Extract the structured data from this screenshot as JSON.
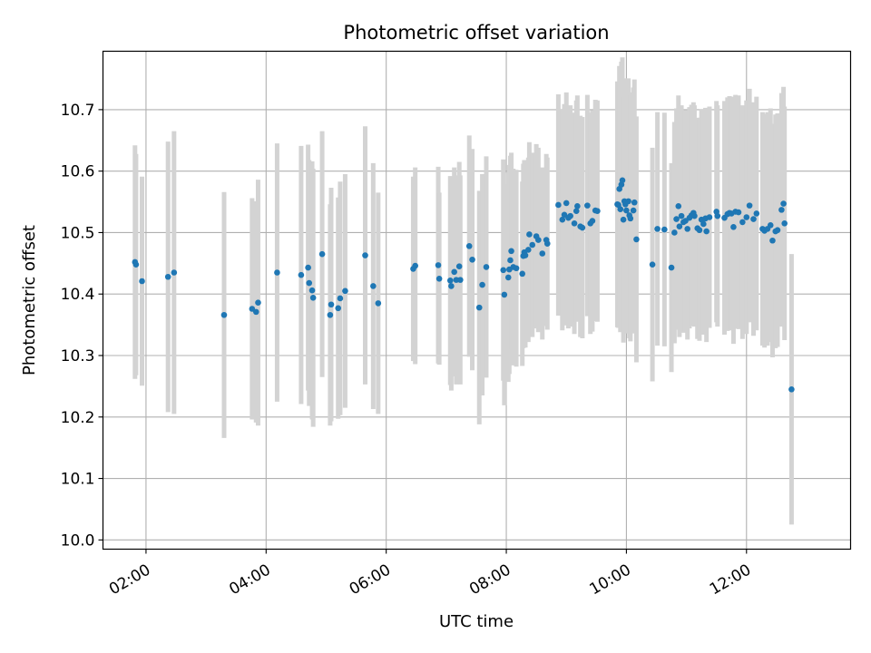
{
  "chart_data": {
    "type": "scatter",
    "title": "Photometric offset variation",
    "xlabel": "UTC time",
    "ylabel": "Photometric offset",
    "x_unit": "UTC time (HH:MM)",
    "xlim": [
      "01:17",
      "13:44"
    ],
    "ylim": [
      9.985,
      10.795
    ],
    "grid": true,
    "x_tick_labels": [
      "02:00",
      "04:00",
      "06:00",
      "08:00",
      "10:00",
      "12:00"
    ],
    "y_tick_labels": [
      "10.0",
      "10.1",
      "10.2",
      "10.3",
      "10.4",
      "10.5",
      "10.6",
      "10.7"
    ],
    "colors": {
      "points": "#1f77b4",
      "error_bars": "#d3d3d3",
      "grid": "#b0b0b0"
    },
    "series": [
      {
        "points": [
          [
            "01:49",
            10.452,
            0.19
          ],
          [
            "01:50",
            10.448,
            0.18
          ],
          [
            "01:56",
            10.421,
            0.17
          ],
          [
            "02:22",
            10.428,
            0.22
          ],
          [
            "02:28",
            10.435,
            0.23
          ],
          [
            "03:18",
            10.366,
            0.2
          ],
          [
            "03:46",
            10.376,
            0.18
          ],
          [
            "03:50",
            10.371,
            0.18
          ],
          [
            "03:52",
            10.386,
            0.2
          ],
          [
            "04:11",
            10.435,
            0.21
          ],
          [
            "04:35",
            10.431,
            0.21
          ],
          [
            "04:42",
            10.443,
            0.2
          ],
          [
            "04:43",
            10.418,
            0.2
          ],
          [
            "04:46",
            10.406,
            0.21
          ],
          [
            "04:47",
            10.394,
            0.21
          ],
          [
            "04:56",
            10.465,
            0.2
          ],
          [
            "05:04",
            10.366,
            0.18
          ],
          [
            "05:05",
            10.383,
            0.19
          ],
          [
            "05:12",
            10.377,
            0.18
          ],
          [
            "05:14",
            10.393,
            0.19
          ],
          [
            "05:19",
            10.405,
            0.19
          ],
          [
            "05:39",
            10.463,
            0.21
          ],
          [
            "05:47",
            10.413,
            0.2
          ],
          [
            "05:52",
            10.385,
            0.18
          ],
          [
            "06:27",
            10.441,
            0.15
          ],
          [
            "06:29",
            10.446,
            0.16
          ],
          [
            "06:52",
            10.447,
            0.16
          ],
          [
            "06:53",
            10.425,
            0.14
          ],
          [
            "07:04",
            10.422,
            0.17
          ],
          [
            "07:05",
            10.413,
            0.17
          ],
          [
            "07:08",
            10.436,
            0.17
          ],
          [
            "07:10",
            10.423,
            0.17
          ],
          [
            "07:13",
            10.445,
            0.17
          ],
          [
            "07:14",
            10.423,
            0.17
          ],
          [
            "07:23",
            10.478,
            0.18
          ],
          [
            "07:26",
            10.456,
            0.18
          ],
          [
            "07:33",
            10.378,
            0.19
          ],
          [
            "07:36",
            10.415,
            0.18
          ],
          [
            "07:40",
            10.444,
            0.18
          ],
          [
            "07:57",
            10.439,
            0.18
          ],
          [
            "07:58",
            10.399,
            0.18
          ],
          [
            "08:02",
            10.427,
            0.17
          ],
          [
            "08:03",
            10.44,
            0.17
          ],
          [
            "08:04",
            10.455,
            0.17
          ],
          [
            "08:05",
            10.47,
            0.16
          ],
          [
            "08:07",
            10.444,
            0.16
          ],
          [
            "08:10",
            10.442,
            0.16
          ],
          [
            "08:16",
            10.433,
            0.15
          ],
          [
            "08:17",
            10.462,
            0.15
          ],
          [
            "08:18",
            10.468,
            0.15
          ],
          [
            "08:19",
            10.463,
            0.15
          ],
          [
            "08:22",
            10.472,
            0.15
          ],
          [
            "08:23",
            10.497,
            0.15
          ],
          [
            "08:26",
            10.48,
            0.15
          ],
          [
            "08:30",
            10.494,
            0.15
          ],
          [
            "08:32",
            10.488,
            0.15
          ],
          [
            "08:36",
            10.466,
            0.14
          ],
          [
            "08:40",
            10.488,
            0.14
          ],
          [
            "08:41",
            10.482,
            0.14
          ],
          [
            "08:52",
            10.545,
            0.18
          ],
          [
            "08:56",
            10.521,
            0.18
          ],
          [
            "08:58",
            10.529,
            0.18
          ],
          [
            "09:00",
            10.548,
            0.18
          ],
          [
            "09:02",
            10.524,
            0.18
          ],
          [
            "09:04",
            10.527,
            0.18
          ],
          [
            "09:08",
            10.515,
            0.18
          ],
          [
            "09:10",
            10.535,
            0.18
          ],
          [
            "09:11",
            10.543,
            0.18
          ],
          [
            "09:14",
            10.51,
            0.18
          ],
          [
            "09:16",
            10.508,
            0.18
          ],
          [
            "09:21",
            10.544,
            0.18
          ],
          [
            "09:24",
            10.515,
            0.18
          ],
          [
            "09:26",
            10.519,
            0.18
          ],
          [
            "09:29",
            10.536,
            0.18
          ],
          [
            "09:31",
            10.535,
            0.18
          ],
          [
            "09:51",
            10.546,
            0.2
          ],
          [
            "09:52",
            10.545,
            0.2
          ],
          [
            "09:53",
            10.571,
            0.2
          ],
          [
            "09:54",
            10.538,
            0.2
          ],
          [
            "09:55",
            10.578,
            0.2
          ],
          [
            "09:56",
            10.585,
            0.2
          ],
          [
            "09:57",
            10.521,
            0.2
          ],
          [
            "09:58",
            10.551,
            0.2
          ],
          [
            "09:59",
            10.546,
            0.2
          ],
          [
            "10:00",
            10.536,
            0.2
          ],
          [
            "10:02",
            10.551,
            0.2
          ],
          [
            "10:03",
            10.528,
            0.2
          ],
          [
            "10:04",
            10.523,
            0.2
          ],
          [
            "10:07",
            10.536,
            0.2
          ],
          [
            "10:08",
            10.549,
            0.2
          ],
          [
            "10:10",
            10.489,
            0.2
          ],
          [
            "10:26",
            10.448,
            0.19
          ],
          [
            "10:31",
            10.506,
            0.19
          ],
          [
            "10:38",
            10.505,
            0.19
          ],
          [
            "10:45",
            10.443,
            0.17
          ],
          [
            "10:48",
            10.5,
            0.18
          ],
          [
            "10:50",
            10.522,
            0.18
          ],
          [
            "10:52",
            10.543,
            0.18
          ],
          [
            "10:53",
            10.51,
            0.18
          ],
          [
            "10:55",
            10.527,
            0.18
          ],
          [
            "10:57",
            10.517,
            0.18
          ],
          [
            "10:59",
            10.519,
            0.18
          ],
          [
            "11:01",
            10.506,
            0.18
          ],
          [
            "11:03",
            10.524,
            0.18
          ],
          [
            "11:05",
            10.528,
            0.18
          ],
          [
            "11:07",
            10.532,
            0.18
          ],
          [
            "11:08",
            10.527,
            0.18
          ],
          [
            "11:11",
            10.507,
            0.18
          ],
          [
            "11:13",
            10.504,
            0.18
          ],
          [
            "11:15",
            10.521,
            0.18
          ],
          [
            "11:17",
            10.514,
            0.18
          ],
          [
            "11:19",
            10.523,
            0.18
          ],
          [
            "11:20",
            10.502,
            0.18
          ],
          [
            "11:23",
            10.525,
            0.18
          ],
          [
            "11:30",
            10.534,
            0.18
          ],
          [
            "11:31",
            10.527,
            0.18
          ],
          [
            "11:38",
            10.524,
            0.19
          ],
          [
            "11:41",
            10.53,
            0.19
          ],
          [
            "11:43",
            10.532,
            0.19
          ],
          [
            "11:45",
            10.531,
            0.19
          ],
          [
            "11:47",
            10.509,
            0.19
          ],
          [
            "11:49",
            10.534,
            0.19
          ],
          [
            "11:52",
            10.533,
            0.19
          ],
          [
            "11:56",
            10.517,
            0.19
          ],
          [
            "12:00",
            10.525,
            0.19
          ],
          [
            "12:03",
            10.544,
            0.19
          ],
          [
            "12:07",
            10.522,
            0.19
          ],
          [
            "12:10",
            10.531,
            0.19
          ],
          [
            "12:16",
            10.506,
            0.19
          ],
          [
            "12:18",
            10.503,
            0.19
          ],
          [
            "12:21",
            10.506,
            0.19
          ],
          [
            "12:24",
            10.512,
            0.19
          ],
          [
            "12:26",
            10.487,
            0.19
          ],
          [
            "12:29",
            10.502,
            0.19
          ],
          [
            "12:31",
            10.504,
            0.19
          ],
          [
            "12:35",
            10.537,
            0.19
          ],
          [
            "12:37",
            10.547,
            0.19
          ],
          [
            "12:38",
            10.515,
            0.19
          ],
          [
            "12:45",
            10.245,
            0.22
          ]
        ]
      }
    ]
  }
}
